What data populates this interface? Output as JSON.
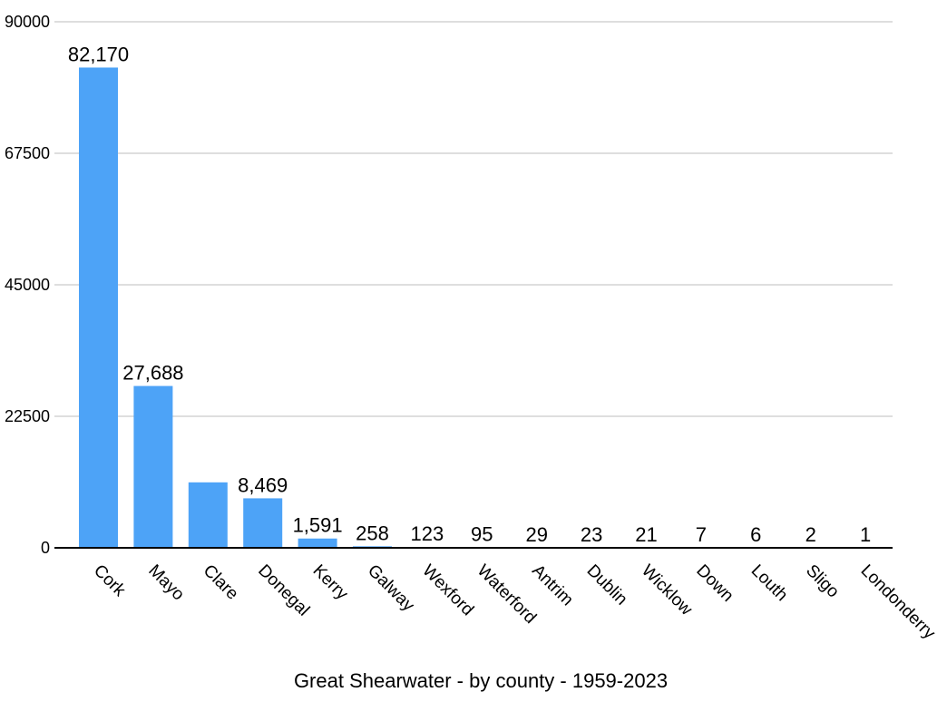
{
  "chart_data": {
    "type": "bar",
    "title": "",
    "xlabel": "Great Shearwater - by county - 1959-2023",
    "ylabel": "",
    "ylim": [
      0,
      90000
    ],
    "yticks": [
      "0",
      "22500",
      "45000",
      "67500",
      "90000"
    ],
    "categories": [
      "Cork",
      "Mayo",
      "Clare",
      "Donegal",
      "Kerry",
      "Galway",
      "Wexford",
      "Waterford",
      "Antrim",
      "Dublin",
      "Wicklow",
      "Down",
      "Louth",
      "Sligo",
      "Londonderry"
    ],
    "values": [
      82170,
      27688,
      11200,
      8469,
      1591,
      258,
      123,
      95,
      29,
      23,
      21,
      7,
      6,
      2,
      1
    ],
    "data_labels": [
      "82,170",
      "27,688",
      "",
      "8,469",
      "1,591",
      "258",
      "123",
      "95",
      "29",
      "23",
      "21",
      "7",
      "6",
      "2",
      "1"
    ],
    "bar_color": "#4da3f7",
    "grid": true,
    "legend": "none"
  }
}
